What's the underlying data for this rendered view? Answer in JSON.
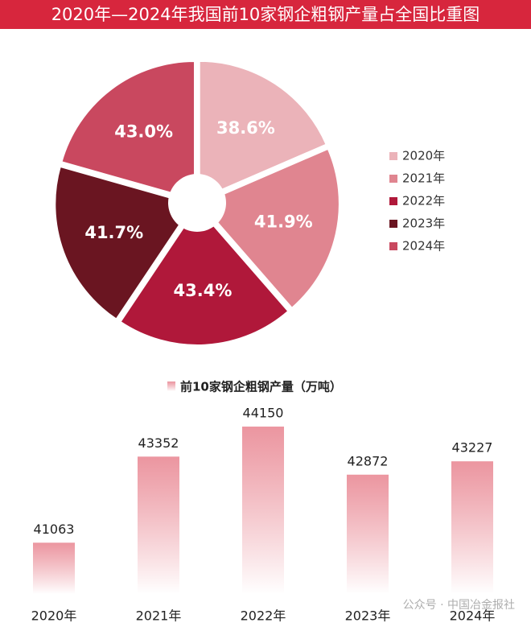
{
  "chart_data": [
    {
      "type": "pie",
      "title": "2020年—2024年我国前10家钢企粗钢产量占全国比重图",
      "categories": [
        "2020年",
        "2021年",
        "2022年",
        "2023年",
        "2024年"
      ],
      "values": [
        38.6,
        41.9,
        43.4,
        41.7,
        43.0
      ],
      "value_labels": [
        "38.6%",
        "41.9%",
        "43.4%",
        "41.7%",
        "43.0%"
      ],
      "colors": [
        "#ebb3b9",
        "#e08590",
        "#b0183a",
        "#6a1521",
        "#c9485f"
      ],
      "legend": "right"
    },
    {
      "type": "bar",
      "categories": [
        "2020年",
        "2021年",
        "2022年",
        "2023年",
        "2024年"
      ],
      "series": [
        {
          "name": "前10家钢企粗钢产量（万吨）",
          "color": "#e8838f",
          "values": [
            41063,
            43352,
            44150,
            42872,
            43227
          ]
        }
      ],
      "ylim": [
        39700,
        44600
      ],
      "watermark": "公众号 · 中国冶金报社"
    }
  ]
}
